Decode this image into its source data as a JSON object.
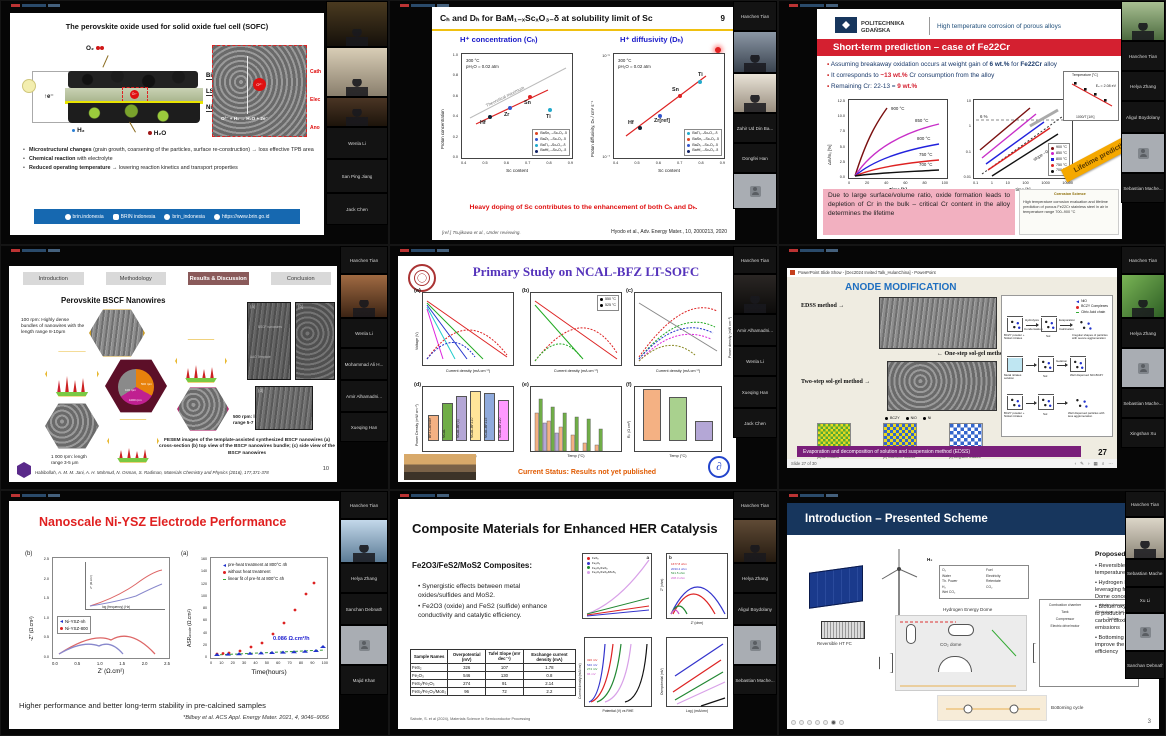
{
  "panels": {
    "p1": {
      "title": "The perovskite oxide used for solid oxide fuel cell (SOFC)",
      "diagram": {
        "o2": "O₂",
        "h2": "H₂",
        "h2o": "H₂O",
        "e": "e⁻",
        "layers": [
          "BiLSC",
          "LSGM",
          "Ni-GDC"
        ],
        "cath": "Cath",
        "elec": "Elec",
        "ano": "Ano",
        "reaction": "O²⁻ + H₂ → H₂O + 2e⁻"
      },
      "bullets": [
        {
          "b": "Microstructural changes",
          "r": " (grain growth, coarsening of the particles, surface re-construction) → loss effective TPB area"
        },
        {
          "b": "Chemical reaction",
          "r": " with electrolyte"
        },
        {
          "b": "Reduced operating temperature",
          "r": " → lowering reaction kinetics and transport properties"
        }
      ],
      "footer": [
        "brin.indonesia",
        "BRIN indonesia",
        "brin_indonesia",
        "https://www.brin.go.id"
      ],
      "participants": [
        "Wenla Li",
        "San Ping Jiang",
        "Jack Chen"
      ]
    },
    "p2": {
      "title": "Cₕ and Dₕ for BaM₁₋ₓScₓO₃₋δ at solubility limit of Sc",
      "page": "9",
      "message": "Heavy doping of Sc contributes to the enhancement of both Cₕ and Dₕ.",
      "ref_left": "[ref.] Tsujikawa et al., Under reviewing.",
      "ref_right": "Hyodo et al., Adv. Energy Mater., 10, 2000213, 2020",
      "left": {
        "title": "H⁺ concentration (Cₕ)",
        "cond1": "300 °C",
        "cond2": "pH₂O = 0.02 atm",
        "ylabel": "Proton concentration",
        "xlabel": "Sc content",
        "diag": "Theoretical maximum",
        "xticks": [
          "0.4",
          "0.5",
          "0.6",
          "0.7",
          "0.8",
          "0.9"
        ],
        "yticks": [
          "1.0",
          "0.8",
          "0.6",
          "0.4",
          "0.2",
          "0.0"
        ],
        "points": [
          "Hf",
          "Zr",
          "Sn",
          "Ti"
        ],
        "legend": [
          "BaSn₁₋ₓScₓO₃₋δ",
          "BaZr₁₋ₓScₓO₃₋δ",
          "BaTi₁₋ₓScₓO₃₋δ",
          "BaHf₁₋ₓScₓO₃₋δ"
        ]
      },
      "right": {
        "title": "H⁺ diffusivity (Dₕ)",
        "cond1": "300 °C",
        "cond2": "pH₂O = 0.02 atm",
        "ylabel": "Proton diffusivity, Dₕ / cm² s⁻¹",
        "xlabel": "Sc content",
        "yticks": [
          "10⁻⁶",
          "10⁻⁷"
        ],
        "xticks": [
          "0.4",
          "0.5",
          "0.6",
          "0.7",
          "0.8",
          "0.9"
        ],
        "points": [
          "Hf",
          "Zr[ref]",
          "Sn",
          "Ti"
        ],
        "legend": [
          "BaTi₁₋ₓScₓO₃₋δ",
          "BaSn₁₋ₓScₓO₃₋δ",
          "BaZr₁₋ₓScₓO₃₋δ",
          "BaHf₁₋ₓScₓO₃₋δ"
        ]
      },
      "participants": [
        "Hanchen Tian",
        "Zahir Ud Din Ba...",
        "Dongfei Han"
      ]
    },
    "p3": {
      "org": "POLITECHNIKA GDAŃSKA",
      "header": "High temperature corrosion of porous alloys",
      "banner": "Short-term prediction – case of Fe22Cr",
      "b1": [
        "Assuming breakaway oxidation occurs at weight gain of ",
        "6 wt.%",
        " for ",
        "Fe22Cr",
        " alloy"
      ],
      "b2": [
        "It corresponds to ",
        "~13 wt.%",
        " Cr consumption from the alloy"
      ],
      "b3": [
        "Remaining Cr: 22-13 = ",
        "9 wt.%"
      ],
      "plot1": {
        "ylabel": "Δm/m₀ [%]",
        "xlabel": "Time [h]",
        "yticks": [
          "12.5",
          "10.0",
          "7.5",
          "5.0",
          "2.5",
          "0.0"
        ],
        "xticks": [
          "0",
          "20",
          "40",
          "60",
          "80",
          "100"
        ],
        "curves": [
          "900 °C",
          "850 °C",
          "800 °C",
          "750 °C",
          "700 °C"
        ]
      },
      "plot2": {
        "xlabel": "time [h]",
        "yticks": [
          "10",
          "1",
          "0.1",
          "0.01"
        ],
        "xticks": [
          "0.1",
          "1",
          "10",
          "100",
          "1000",
          "10000"
        ],
        "six": "6 %",
        "slope": "slope ~0.5",
        "legend": [
          "900 °C",
          "850 °C",
          "800 °C",
          "750 °C",
          "700 °C"
        ]
      },
      "inset": {
        "top": "Temperature [°C]",
        "xlabel": "1000/T [1/K]",
        "ea": "Eₐ = 2.08 eV"
      },
      "ribbon": "Lifetime prediction",
      "note": "Due to large surface/volume ratio, oxide formation leads to depletion of Cr in the bulk – critical Cr content in the alloy determines the lifetime",
      "paper": {
        "journal": "Corrosion Science",
        "title": "High temperature corrosion evaluation and lifetime prediction of porous Fe22Cr stainless steel in air in temperature range 700–900 °C"
      },
      "participants": [
        "Hanchen Tian",
        "Helya Zhang",
        "Aligul Boydolany",
        "Sebastian Mache..."
      ]
    },
    "p4": {
      "tabs": [
        "Introduction",
        "Methodology",
        "Results & Discussion",
        "Conclusion"
      ],
      "title": "Perovskite BSCF Nanowires",
      "bullet": "100 rpm: Highly dense bundles of nanowires with the length range 8-10μm",
      "label500": "500 rpm: length range 5-7 μm",
      "label1000": "1 000 rpm: length range 3-5 μm",
      "pie": [
        "100 rpm",
        "500 rpm",
        "1000 rpm"
      ],
      "sem": {
        "a": "(a)",
        "b": "(b)",
        "d": "(d)",
        "ann1": "BSCF nanowires",
        "ann2": "AAO Template"
      },
      "caption": "FESEM images of the template-assisted synthesized BSCF nanowires (a) cross-section (b) top view of the BSCF nanowires bundle; (c) side view of the BSCF nanowires",
      "citation": "Habibollah, A. M. M. Jani, A. H. Mahmud, N. Osman, S. Radiman, Materials Chemistry and Physics (2016), 177,371-378",
      "page": "10",
      "participants": [
        "Hanchen Tian",
        "Wenla Li",
        "Mohammad Ali H...",
        "Amir Alhamadni...",
        "Xueqing Han"
      ]
    },
    "p5": {
      "title": "Primary Study on NCAL-BFZ LT-SOFC",
      "sub": [
        "(a)",
        "(b)",
        "(c)",
        "(d)",
        "(e)",
        "(f)"
      ],
      "legend_b": [
        "550 °C",
        "525 °C"
      ],
      "ylabel_v": "Voltage (V)",
      "ylabel_p": "Power density (mW cm⁻²)",
      "xlabel_cd": "Current density (mA cm⁻²)",
      "ylabel_pd": "Power Density (mW cm⁻²)",
      "ylabel_rp": "Rₚ (Ω cm²)",
      "xlabel_t": "Temp (°C)",
      "bars_d": [
        "BFZ Cathode",
        "NCAL",
        "NCAL-BF(3)",
        "NCAL-BFZ10",
        "NCAL-BFZ15",
        "NCAL-BFZ20"
      ],
      "status": "Current Status: Results not yet published",
      "participants": [
        "Hanchen Tian",
        "Amir Alhamadni...",
        "Wenla Li",
        "Xueqing Han",
        "Jack Chen"
      ]
    },
    "p6": {
      "window_title": "PowerPoint Slide Show - [Dec2024 Invited Talk_HulanChina] - PowerPoint",
      "title": "ANODE MODIFICATION",
      "lbl_edss": "EDSS method →",
      "lbl_one": "← One-step sol-gel method",
      "lbl_two": "Two-step sol-gel method →",
      "legend": [
        "NiO",
        "BCZY Complexes",
        "Citric Acid chain"
      ],
      "arrow1a": "Hydrolysis",
      "arrow1b": "Condensation",
      "arrow2a": "Evaporation",
      "arrow2b": "Calcination",
      "arrow3": "Gelation",
      "r1": [
        "BCZY powder + Nickel nitrates",
        "Sol",
        "Irregular shapes of particles with severe agglomeration"
      ],
      "r2": [
        "Metal nitrates solution",
        "Sol",
        "Well dispersed NiO-BCZY"
      ],
      "r3": [
        "BCZY powder + Nickel nitrates",
        "Sol",
        "Well dispersed particles with less agglomeration"
      ],
      "grid_legend": [
        "BCZY",
        "NiO",
        "Ni"
      ],
      "cc": "Current collector",
      "caps": [
        "(a) As- reduced",
        "(b) Short-term reduced",
        "(c) Long-term reduced"
      ],
      "footer": "Evaporation and decomposition of solution and suspension method (EDSS)",
      "page": "27",
      "status": "Slide 27 of 30",
      "participants": [
        "Hanchen Tian",
        "Helya Zhang",
        "Sebastian Mache...",
        "Xingshan Xu"
      ]
    },
    "p7": {
      "title": "Nanoscale Ni-YSZ Electrode Performance",
      "pb": "(b)",
      "pa": "(a)",
      "nyquist": {
        "ylabel": "-Z″ (Ω.cm²)",
        "xlabel": "Z′ (Ω.cm²)",
        "xticks": [
          "0.0",
          "0.5",
          "1.0",
          "1.5",
          "2.0",
          "2.5"
        ],
        "yticks": [
          "2.5",
          "2.0",
          "1.5",
          "1.0",
          "0.5",
          "0.0"
        ],
        "legend": [
          "Ni-YSZ-nh",
          "Ni-YSZ-800"
        ],
        "inset_x": "log (frequency) (Hz)",
        "inset_y": "Z″ (Ω.cm²)"
      },
      "asr": {
        "ylabel_main": "ASR",
        "ylabel_sub": "anode",
        "ylabel_unit": " (Ω.cm²)",
        "xlabel": "Time(hours)",
        "yticks": [
          "160",
          "140",
          "120",
          "100",
          "80",
          "60",
          "40",
          "20",
          "0"
        ],
        "xticks": [
          "0",
          "10",
          "20",
          "30",
          "40",
          "50",
          "60",
          "70",
          "80",
          "90",
          "100"
        ],
        "legend": [
          "pre-heat treatment at 800°C 4h",
          "without heat treatment",
          "linear fit of pre-ht at 800°C 4h"
        ],
        "rate": "0.086 Ω.cm²/h"
      },
      "bottom": "Higher performance and better long-term stability in pre-calcined samples",
      "cite": "*Bilbey et al. ACS Appl. Energy Mater. 2021, 4, 9046–9056",
      "participants": [
        "Hanchen Tian",
        "Helya Zhang",
        "Sanchan Debnath",
        "Majid Khan"
      ]
    },
    "p8": {
      "title": "Composite Materials for Enhanced HER Catalysis",
      "subtitle": "Fe2O3/FeS2/MoS2 Composites:",
      "bullets": [
        "Synergistic effects between metal oxides/sulfides and MoS2.",
        "Fe2O3 (oxide) and FeS2 (sulfide) enhance conductivity and catalytic efficiency."
      ],
      "table": {
        "headers": [
          "Sample Names",
          "Overpotential (mV)",
          "Tafel Slope (mV dec⁻¹)",
          "Exchange current density (mA)"
        ],
        "rows": [
          [
            "FeS₂",
            "326",
            "107",
            "1.78"
          ],
          [
            "Fe₂O₃",
            "546",
            "130",
            "0.8"
          ],
          [
            "FeS₂/Fe₂O₃",
            "274",
            "91",
            "2.14"
          ],
          [
            "FeS₂/Fe₂O₃/MoS₂",
            "96",
            "72",
            "2.2"
          ]
        ]
      },
      "note": "Sabote, S. et al (2024), Materials Science in Semiconductor Processing",
      "legend": [
        "FeS₂",
        "Fe₂O₃",
        "Fe₂O₃/FeS₂",
        "Fe₂O₃/FeS₂/MoS₂"
      ],
      "pa": "a",
      "pbl": "b",
      "ohms": [
        "1677.8 ohm",
        "2033.4 ohm",
        "521.5 ohm",
        "208.3 ohm"
      ],
      "mvs": [
        "326 mV",
        "546 mV",
        "274 mV",
        "96 mV"
      ],
      "axes": {
        "y2": "Z″ (ohm)",
        "x2": "Z′ (ohm)",
        "x3": "Potential (V) vs RHE",
        "y3": "Current density (mA/cm²)",
        "x4": "Log j (mA/cm²)",
        "y4": "Overpotential (mV)"
      },
      "participants": [
        "Hanchen Tian",
        "Helya Zhang",
        "Aligul Boydolany",
        "Sebastian Mache..."
      ]
    },
    "p9": {
      "header": "Introduction – Presented Scheme",
      "proposed": "Proposed scheme",
      "bullets": [
        "Reversible high temperature fuel cell",
        "Hydrogen Energy leveraging from Energy Dome concept",
        "Biofuel oxycombustion to produce negative carbon dioxide emissions",
        "Bottoming cycle to improve the overall efficiency"
      ],
      "fc": "Reversible HT FC",
      "dome": "CO₂ dome",
      "hdome": "Hydrogen Energy Dome",
      "bottoming": "Bottoming cycle",
      "h2": "H₂",
      "legend1": [
        "O₂",
        "Fuel",
        "Water",
        "Electricity",
        "Th. Power",
        "Retentate",
        "H₂",
        "CO₂",
        "Wet CO₂"
      ],
      "legend2": [
        "Combustion chamber",
        "Heat exchangers",
        "Tank",
        "Electrolyser or fuel cell",
        "Compressor",
        "Turbine",
        "Electric drive/motor"
      ],
      "page": "3",
      "participants": [
        "Hanchen Tian",
        "Sebastian Mache...",
        "Xu Li",
        "Sanchan Debnath"
      ]
    }
  }
}
